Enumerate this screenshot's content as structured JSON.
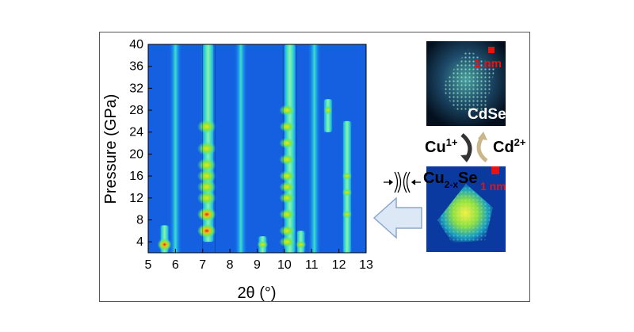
{
  "chart_data": {
    "type": "heatmap",
    "xlabel": "2θ (°)",
    "ylabel": "Pressure (GPa)",
    "xlim": [
      5,
      13
    ],
    "ylim": [
      2,
      40
    ],
    "x_ticks": [
      "5",
      "6",
      "7",
      "8",
      "9",
      "10",
      "11",
      "12",
      "13"
    ],
    "y_ticks": [
      "4",
      "8",
      "12",
      "16",
      "20",
      "24",
      "28",
      "32",
      "36",
      "40"
    ],
    "colors": {
      "background": "#1460e0",
      "low": "#1fa0ee",
      "mid": "#3fe0c0",
      "high": "#7fe83a",
      "peak": "#f0e020",
      "max": "#e02010"
    },
    "peaks": [
      {
        "two_theta": 5.6,
        "p_range": [
          2,
          7
        ]
      },
      {
        "two_theta": 7.2,
        "p_range": [
          4,
          40
        ]
      },
      {
        "two_theta": 9.2,
        "p_range": [
          2,
          5
        ]
      },
      {
        "two_theta": 10.2,
        "p_range": [
          2,
          40
        ]
      },
      {
        "two_theta": 10.6,
        "p_range": [
          2,
          6
        ]
      },
      {
        "two_theta": 11.6,
        "p_range": [
          24,
          30
        ]
      },
      {
        "two_theta": 12.3,
        "p_range": [
          2,
          26
        ]
      }
    ]
  },
  "insets": {
    "top": {
      "label": "CdSe",
      "scale": "1 nm"
    },
    "bottom": {
      "label": "Cu",
      "label_sub": "2-x",
      "label_tail": "Se",
      "scale": "1 nm"
    }
  },
  "ions": {
    "forward": {
      "base": "Cu",
      "sup": "1+"
    },
    "reverse": {
      "base": "Cd",
      "sup": "2+"
    }
  },
  "pressure_icon": "compression-icon",
  "arrow_icon": "left-arrow-icon"
}
